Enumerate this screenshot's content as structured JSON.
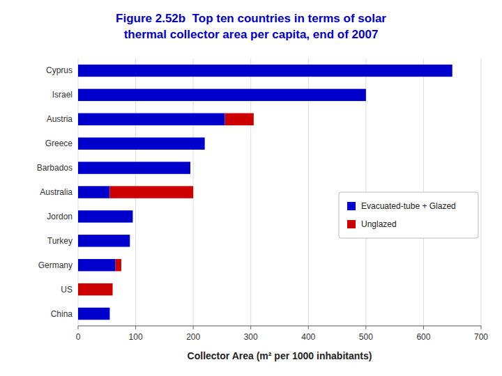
{
  "chart_data": {
    "type": "bar",
    "orientation": "horizontal",
    "stacked": true,
    "title": "Figure 2.52b  Top ten countries in terms of solar\nthermal collector area per capita, end of 2007",
    "x_label": "Collector Area (m² per 1000 inhabitants)",
    "categories": [
      "Cyprus",
      "Israel",
      "Austria",
      "Greece",
      "Barbados",
      "Australia",
      "Jordon",
      "Turkey",
      "Germany",
      "US",
      "China"
    ],
    "series": [
      {
        "name": "Evacuated-tube + Glazed",
        "color": "#0000CC",
        "values": [
          650,
          500,
          255,
          220,
          195,
          55,
          95,
          90,
          65,
          0,
          55
        ]
      },
      {
        "name": "Unglazed",
        "color": "#CC0000",
        "values": [
          0,
          0,
          50,
          0,
          0,
          145,
          0,
          0,
          10,
          60,
          0
        ]
      }
    ],
    "xlim": [
      0,
      700
    ],
    "xticks": [
      0,
      100,
      200,
      300,
      400,
      500,
      600,
      700
    ],
    "grid": true,
    "legend": "right"
  }
}
